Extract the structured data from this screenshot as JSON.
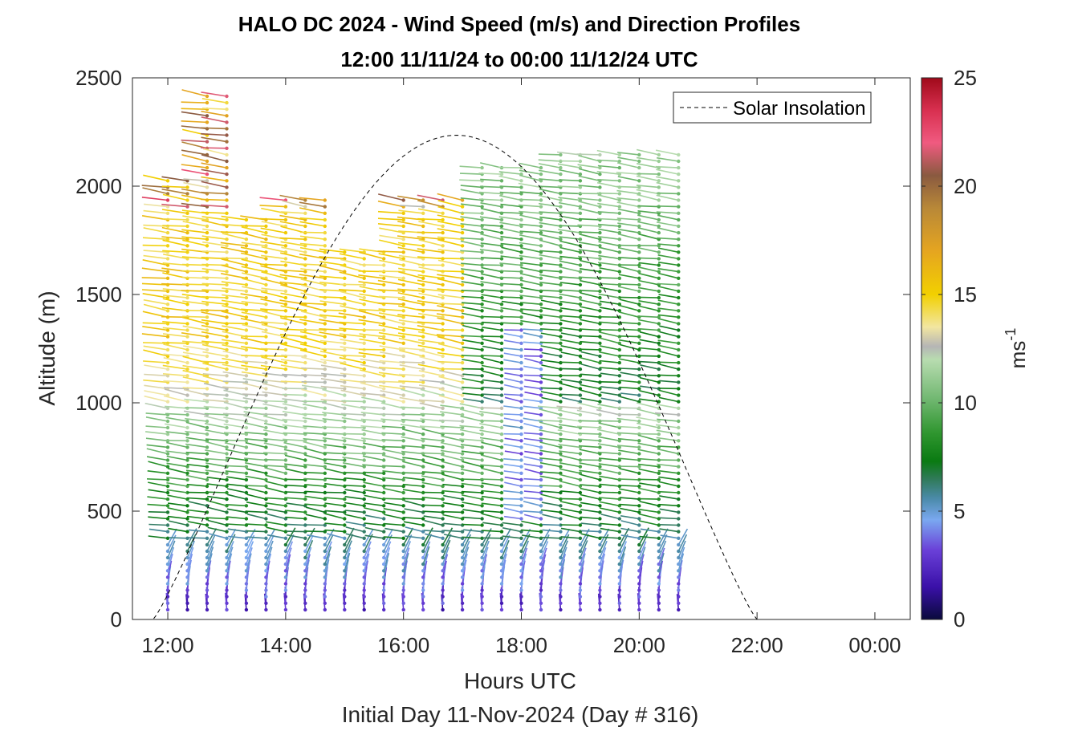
{
  "chart_data": {
    "type": "scatter",
    "subtype": "wind-barb-profile",
    "title": "HALO DC 2024 - Wind Speed (m/s) and Direction Profiles",
    "subtitle": "12:00 11/11/24 to 00:00 11/12/24  UTC",
    "xlabel": "Hours UTC",
    "ylabel": "Altitude (m)",
    "footer": "Initial Day 11-Nov-2024 (Day # 316)",
    "xlim_hours": [
      11.4,
      24.6
    ],
    "ylim": [
      0,
      2500
    ],
    "x_tick_hours": [
      12,
      14,
      16,
      18,
      20,
      22,
      24
    ],
    "x_tick_labels": [
      "12:00",
      "14:00",
      "16:00",
      "18:00",
      "20:00",
      "22:00",
      "00:00"
    ],
    "y_ticks": [
      0,
      500,
      1000,
      1500,
      2000,
      2500
    ],
    "y_tick_labels": [
      "0",
      "500",
      "1000",
      "1500",
      "2000",
      "2500"
    ],
    "colorbar": {
      "label": "ms",
      "label_superscript": "-1",
      "range": [
        0,
        25
      ],
      "ticks": [
        0,
        5,
        10,
        15,
        20,
        25
      ],
      "tick_labels": [
        "0",
        "5",
        "10",
        "15",
        "20",
        "25"
      ],
      "stops": [
        {
          "v": 0,
          "c": "#0a0a3c"
        },
        {
          "v": 1.5,
          "c": "#3a10a8"
        },
        {
          "v": 3.2,
          "c": "#6a40d8"
        },
        {
          "v": 4.6,
          "c": "#7aa8f0"
        },
        {
          "v": 5.6,
          "c": "#4a8aa8"
        },
        {
          "v": 6.5,
          "c": "#2f7a58"
        },
        {
          "v": 7.3,
          "c": "#0a7a12"
        },
        {
          "v": 8.6,
          "c": "#2f962f"
        },
        {
          "v": 10.2,
          "c": "#72b872"
        },
        {
          "v": 12.0,
          "c": "#b8dcb0"
        },
        {
          "v": 12.6,
          "c": "#b5b5b5"
        },
        {
          "v": 13.5,
          "c": "#f2e6a0"
        },
        {
          "v": 15.0,
          "c": "#f2d000"
        },
        {
          "v": 17.0,
          "c": "#e5a520"
        },
        {
          "v": 19.0,
          "c": "#b88838"
        },
        {
          "v": 20.5,
          "c": "#8a5a40"
        },
        {
          "v": 22.0,
          "c": "#f05a80"
        },
        {
          "v": 23.5,
          "c": "#d83050"
        },
        {
          "v": 25.0,
          "c": "#a00a1a"
        }
      ]
    },
    "legend": {
      "position": "top-right",
      "entries": [
        "Solar Insolation"
      ]
    },
    "insolation_curve": {
      "style": "dashed",
      "color": "#000000",
      "sunrise_hour": 11.75,
      "sunset_hour": 22.0,
      "peak_hour": 16.9,
      "peak_altitude_equivalent": 2235,
      "baseline_hours": [
        22.0,
        24.6
      ]
    },
    "profile_columns": {
      "start_hour": 12.0,
      "end_hour": 20.8,
      "interval_minutes": 20,
      "gate_spacing_m": 30,
      "low_altitude_start_m": 45
    },
    "wind_field_regimes": [
      {
        "altitude_m": [
          0,
          400
        ],
        "hours": [
          12.0,
          20.8
        ],
        "speed_mps": [
          2,
          6
        ],
        "note": "light winds with strong shear near surface"
      },
      {
        "altitude_m": [
          400,
          1000
        ],
        "hours": [
          12.0,
          20.8
        ],
        "speed_mps": [
          6,
          12
        ],
        "note": "moderate winds"
      },
      {
        "altitude_m": [
          1000,
          1900
        ],
        "hours": [
          12.0,
          17.2
        ],
        "speed_mps": [
          12,
          16
        ],
        "note": "stronger winds aloft"
      },
      {
        "altitude_m": [
          1000,
          2100
        ],
        "hours": [
          17.3,
          20.8
        ],
        "speed_mps": [
          7,
          11
        ],
        "note": "moderate winds aloft"
      },
      {
        "altitude_m": [
          450,
          1350
        ],
        "hours": [
          17.8,
          18.4
        ],
        "speed_mps": [
          3.5,
          5
        ],
        "note": "weaker winds band"
      }
    ]
  }
}
